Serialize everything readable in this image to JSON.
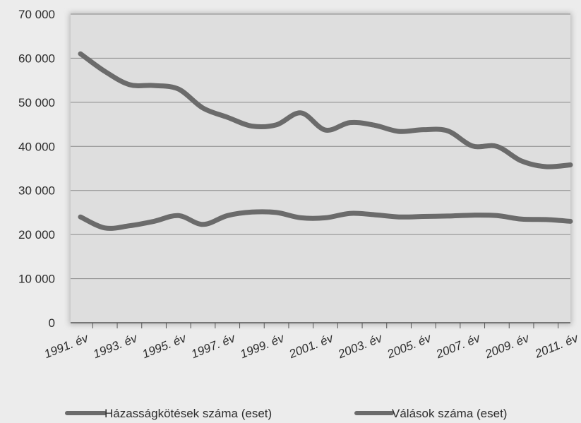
{
  "chart_data": {
    "type": "line",
    "title": "",
    "xlabel": "",
    "ylabel": "",
    "ylim": [
      0,
      70000
    ],
    "yticks": [
      0,
      10000,
      20000,
      30000,
      40000,
      50000,
      60000,
      70000
    ],
    "ytick_labels": [
      "0",
      "10 000",
      "20 000",
      "30 000",
      "40 000",
      "50 000",
      "60 000",
      "70 000"
    ],
    "x": [
      1991,
      1992,
      1993,
      1994,
      1995,
      1996,
      1997,
      1998,
      1999,
      2000,
      2001,
      2002,
      2003,
      2004,
      2005,
      2006,
      2007,
      2008,
      2009,
      2010,
      2011
    ],
    "xtick_labels": [
      "1991. év",
      "1993. év",
      "1995. év",
      "1997. év",
      "1999. év",
      "2001. év",
      "2003. év",
      "2005. év",
      "2007. év",
      "2009. év",
      "2011. év"
    ],
    "grid": true,
    "legend_position": "bottom",
    "series": [
      {
        "name": "Házasságkötések száma (eset)",
        "color": "#6b6b6b",
        "values": [
          61000,
          57000,
          54000,
          53800,
          53000,
          48700,
          46600,
          44600,
          44900,
          47600,
          43700,
          45400,
          44800,
          43400,
          43800,
          43500,
          40100,
          40000,
          36700,
          35400,
          35800
        ]
      },
      {
        "name": "Válások száma (eset)",
        "color": "#6b6b6b",
        "values": [
          24000,
          21500,
          22000,
          23000,
          24300,
          22300,
          24300,
          25100,
          25000,
          23800,
          23800,
          24800,
          24500,
          24000,
          24100,
          24200,
          24400,
          24300,
          23500,
          23400,
          23000
        ]
      }
    ]
  }
}
